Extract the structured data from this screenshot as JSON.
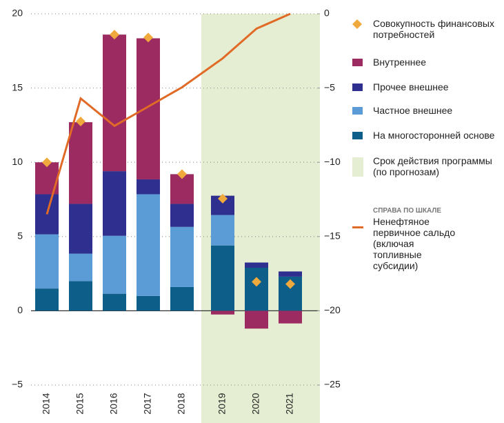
{
  "chart_data": {
    "type": "bar",
    "stacked": true,
    "categories": [
      "2014",
      "2015",
      "2016",
      "2017",
      "2018",
      "2019",
      "2020",
      "2021"
    ],
    "ylim": [
      -5,
      20
    ],
    "yticks": [
      {
        "value": -5,
        "label": "−5"
      },
      0,
      5,
      10,
      15,
      20
    ],
    "y2lim": [
      -25,
      0
    ],
    "y2ticks": [
      {
        "value": -25,
        "label": "−25"
      },
      {
        "value": -20,
        "label": "−20"
      },
      {
        "value": -15,
        "label": "−15"
      },
      {
        "value": -10,
        "label": "−10"
      },
      {
        "value": -5,
        "label": "−5"
      },
      0
    ],
    "grid": true,
    "legend": "right",
    "shade": {
      "name": "Срок действия программы (по прогнозам)",
      "color": "#e5eed2",
      "from": "2019"
    },
    "axis_note": "СПРАВА ПО ШКАЛЕ",
    "series": [
      {
        "name": "Совокупность финансовых потребностей",
        "type": "marker",
        "color": "#f0a93c",
        "values": [
          10.0,
          12.75,
          18.6,
          18.4,
          9.2,
          7.55,
          1.95,
          1.8
        ]
      },
      {
        "name": "Внутреннее",
        "type": "bar",
        "color": "#9c2b62",
        "values": [
          2.15,
          5.5,
          9.2,
          9.5,
          2.0,
          -0.25,
          -1.2,
          -0.85
        ]
      },
      {
        "name": "Прочее внешнее",
        "type": "bar",
        "color": "#2e2f8f",
        "values": [
          2.7,
          3.35,
          4.35,
          1.0,
          1.55,
          1.3,
          0.35,
          0.35
        ]
      },
      {
        "name": "Частное внешнее",
        "type": "bar",
        "color": "#5b9bd6",
        "values": [
          3.65,
          1.85,
          3.9,
          6.85,
          4.05,
          2.05,
          0,
          0
        ]
      },
      {
        "name": "На многосторонней основе",
        "type": "bar",
        "color": "#0d5e89",
        "values": [
          1.5,
          2.0,
          1.15,
          1.0,
          1.6,
          4.4,
          2.9,
          2.3
        ]
      },
      {
        "name": "Ненефтяное первичное сальдо (включая топливные субсидии)",
        "type": "line",
        "axis": "y2",
        "color": "#e06a26",
        "values": [
          -13.5,
          -5.7,
          -7.55,
          -6.25,
          -4.95,
          -3.0,
          -1.0,
          0
        ]
      }
    ]
  }
}
